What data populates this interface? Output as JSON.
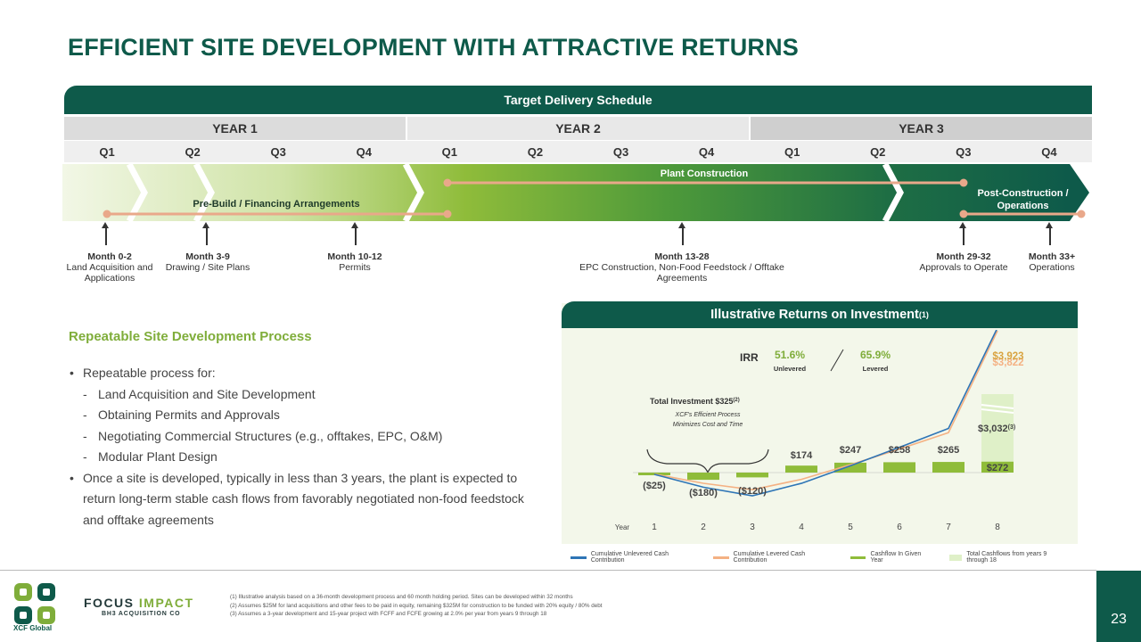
{
  "title": "EFFICIENT SITE DEVELOPMENT WITH ATTRACTIVE RETURNS",
  "schedule": {
    "header": "Target Delivery Schedule",
    "years": [
      "YEAR 1",
      "YEAR 2",
      "YEAR 3"
    ],
    "quarters": [
      "Q1",
      "Q2",
      "Q3",
      "Q4",
      "Q1",
      "Q2",
      "Q3",
      "Q4",
      "Q1",
      "Q2",
      "Q3",
      "Q4"
    ],
    "phases": {
      "prebuild": "Pre-Build / Financing Arrangements",
      "construction": "Plant Construction",
      "post": "Post-Construction / Operations"
    },
    "milestones": [
      {
        "month": "Month 0-2",
        "desc": "Land Acquisition and Applications"
      },
      {
        "month": "Month 3-9",
        "desc": "Drawing / Site Plans"
      },
      {
        "month": "Month 10-12",
        "desc": "Permits"
      },
      {
        "month": "Month 13-28",
        "desc": "EPC Construction, Non-Food Feedstock / Offtake Agreements"
      },
      {
        "month": "Month 29-32",
        "desc": "Approvals to Operate"
      },
      {
        "month": "Month 33+",
        "desc": "Operations"
      }
    ]
  },
  "process": {
    "title": "Repeatable Site Development  Process",
    "intro": "Repeatable process for:",
    "items": [
      "Land Acquisition and Site Development",
      "Obtaining Permits and Approvals",
      "Negotiating Commercial Structures (e.g., offtakes, EPC, O&M)",
      "Modular Plant Design"
    ],
    "closing": "Once a site is developed, typically in less than 3 years, the plant is expected to return long-term stable cash flows from favorably negotiated non-food feedstock and offtake agreements"
  },
  "returns": {
    "header": "Illustrative Returns on Investment",
    "header_note": "(1)",
    "irr_label": "IRR",
    "irr_unlevered": "51.6%",
    "irr_unlevered_label": "Unlevered",
    "irr_levered": "65.9%",
    "irr_levered_label": "Levered",
    "investment_label": "Total Investment $325",
    "investment_note": "(2)",
    "investment_sub1": "XCF's Efficient Process",
    "investment_sub2": "Minimizes Cost and Time",
    "total_cf_label": "$3,032",
    "total_cf_note": "(3)",
    "unlev_end_label": "$3,923",
    "lev_end_label": "$3,822"
  },
  "chart_data": {
    "type": "bar",
    "xlabel": "Year",
    "categories": [
      "1",
      "2",
      "3",
      "4",
      "5",
      "6",
      "7",
      "8"
    ],
    "series": [
      {
        "name": "Cashflow In Given Year",
        "values": [
          -25,
          -180,
          -120,
          174,
          247,
          258,
          265,
          272
        ],
        "labels": [
          "($25)",
          "($180)",
          "($120)",
          "$174",
          "$247",
          "$258",
          "$265",
          "$272"
        ]
      },
      {
        "name": "Total Cashflows from years 9 through 18",
        "values": [
          0,
          0,
          0,
          0,
          0,
          0,
          0,
          3032
        ]
      },
      {
        "name": "Cumulative Unlevered Cash Contribution",
        "values": [
          -25,
          -205,
          -325,
          -151,
          96,
          354,
          619,
          3923
        ]
      },
      {
        "name": "Cumulative Levered Cash Contribution",
        "values": [
          -20,
          -150,
          -240,
          -95,
          110,
          330,
          560,
          3822
        ]
      }
    ],
    "legend": [
      "Cumulative Unlevered Cash Contribution",
      "Cumulative Levered Cash Contribution",
      "Cashflow In Given Year",
      "Total Cashflows from years 9 through 18"
    ],
    "colors": {
      "unlevered": "#2e75b6",
      "levered": "#f4b183",
      "bar": "#8fbc3a",
      "total": "#dff0c8"
    }
  },
  "footnotes": [
    "(1) Illustrative analysis based on a 36-month development process and 60 month holding period. Sites can be developed within 32 months",
    "(2) Assumes $25M for land acquisitions and other fees to be paid in equity, remaining $325M for construction to be funded with 20% equity / 80% debt",
    "(3) Assumes a 3-year development and 15-year project with FCFF and FCFE growing at 2.0% per year from years 9 through 18"
  ],
  "logos": {
    "xcf": "XCF Global",
    "fi_main_a": "FOCUS ",
    "fi_main_b": "IMPACT",
    "fi_sub": "BH3 ACQUISITION CO"
  },
  "page_number": "23"
}
